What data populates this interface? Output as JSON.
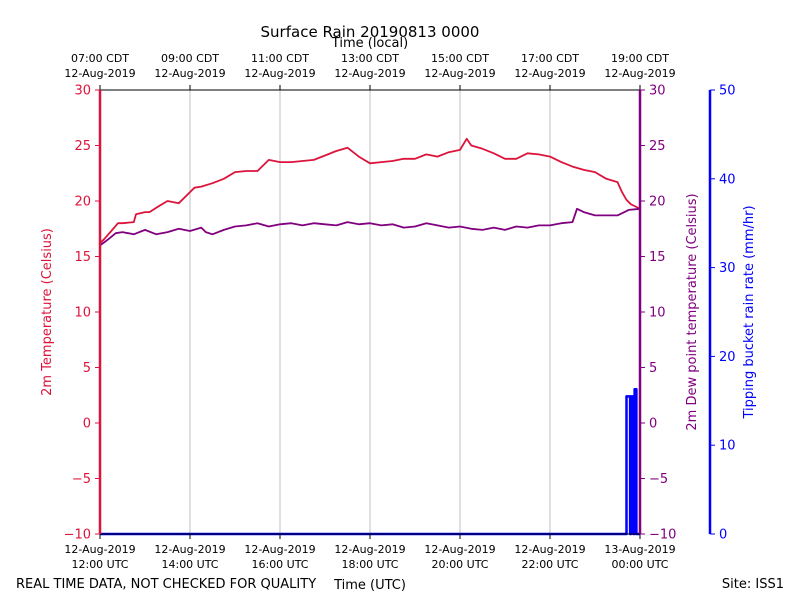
{
  "chart_data": {
    "type": "line",
    "title": "Surface Rain 20190813 0000",
    "top_axis_label": "Time (local)",
    "xlabel": "Time (UTC)",
    "ylabel_left": "2m Temperature (Celsius)",
    "ylabel_right": "2m Dew point temperature (Celsius)",
    "ylabel_far_right": "Tipping bucket rain rate (mm/hr)",
    "footer_left": "REAL TIME DATA, NOT CHECKED FOR QUALITY",
    "footer_right": "Site: ISS1",
    "x_range_hours_utc": [
      12.0,
      24.0
    ],
    "ylim_temperature": [
      -10,
      30
    ],
    "ylim_rain_rate": [
      0,
      50
    ],
    "grid": "vertical",
    "bottom_ticks": [
      {
        "hour": 12,
        "line1": "12-Aug-2019",
        "line2": "12:00 UTC"
      },
      {
        "hour": 14,
        "line1": "12-Aug-2019",
        "line2": "14:00 UTC"
      },
      {
        "hour": 16,
        "line1": "12-Aug-2019",
        "line2": "16:00 UTC"
      },
      {
        "hour": 18,
        "line1": "12-Aug-2019",
        "line2": "18:00 UTC"
      },
      {
        "hour": 20,
        "line1": "12-Aug-2019",
        "line2": "20:00 UTC"
      },
      {
        "hour": 22,
        "line1": "12-Aug-2019",
        "line2": "22:00 UTC"
      },
      {
        "hour": 24,
        "line1": "13-Aug-2019",
        "line2": "00:00 UTC"
      }
    ],
    "top_ticks": [
      {
        "hour": 12,
        "line1": "07:00 CDT",
        "line2": "12-Aug-2019"
      },
      {
        "hour": 14,
        "line1": "09:00 CDT",
        "line2": "12-Aug-2019"
      },
      {
        "hour": 16,
        "line1": "11:00 CDT",
        "line2": "12-Aug-2019"
      },
      {
        "hour": 18,
        "line1": "13:00 CDT",
        "line2": "12-Aug-2019"
      },
      {
        "hour": 20,
        "line1": "15:00 CDT",
        "line2": "12-Aug-2019"
      },
      {
        "hour": 22,
        "line1": "17:00 CDT",
        "line2": "12-Aug-2019"
      },
      {
        "hour": 24,
        "line1": "19:00 CDT",
        "line2": "12-Aug-2019"
      }
    ],
    "temp_ticks": [
      -10,
      -5,
      0,
      5,
      10,
      15,
      20,
      25,
      30
    ],
    "rain_ticks": [
      0,
      10,
      20,
      30,
      40,
      50
    ],
    "colors": {
      "temperature": "#dc143c",
      "dewpoint": "#800080",
      "rain": "#0000ff",
      "grid": "#b0b0b0"
    },
    "series": [
      {
        "key": "temperature",
        "axis": "temperature",
        "x": [
          12.0,
          12.1,
          12.25,
          12.4,
          12.5,
          12.75,
          12.8,
          13.0,
          13.1,
          13.25,
          13.5,
          13.75,
          14.0,
          14.1,
          14.25,
          14.5,
          14.75,
          15.0,
          15.25,
          15.5,
          15.75,
          16.0,
          16.25,
          16.5,
          16.75,
          17.0,
          17.25,
          17.5,
          17.75,
          18.0,
          18.25,
          18.5,
          18.75,
          19.0,
          19.25,
          19.5,
          19.75,
          20.0,
          20.15,
          20.25,
          20.5,
          20.75,
          21.0,
          21.25,
          21.5,
          21.75,
          22.0,
          22.25,
          22.5,
          22.75,
          23.0,
          23.25,
          23.5,
          23.6,
          23.7,
          23.8,
          23.9,
          24.0
        ],
        "values": [
          16.2,
          16.6,
          17.3,
          18.0,
          18.0,
          18.1,
          18.8,
          19.0,
          19.0,
          19.4,
          20.0,
          19.8,
          20.8,
          21.2,
          21.3,
          21.6,
          22.0,
          22.6,
          22.7,
          22.7,
          23.7,
          23.5,
          23.5,
          23.6,
          23.7,
          24.1,
          24.5,
          24.8,
          24.0,
          23.4,
          23.5,
          23.6,
          23.8,
          23.8,
          24.2,
          24.0,
          24.4,
          24.6,
          25.6,
          25.0,
          24.7,
          24.3,
          23.8,
          23.8,
          24.3,
          24.2,
          24.0,
          23.5,
          23.1,
          22.8,
          22.6,
          22.0,
          21.7,
          20.8,
          20.1,
          19.7,
          19.5,
          19.3
        ]
      },
      {
        "key": "dewpoint",
        "axis": "temperature",
        "x": [
          12.0,
          12.1,
          12.2,
          12.35,
          12.5,
          12.75,
          13.0,
          13.25,
          13.5,
          13.75,
          14.0,
          14.25,
          14.35,
          14.5,
          14.75,
          15.0,
          15.25,
          15.5,
          15.75,
          16.0,
          16.25,
          16.5,
          16.75,
          17.0,
          17.25,
          17.5,
          17.75,
          18.0,
          18.25,
          18.5,
          18.75,
          19.0,
          19.25,
          19.5,
          19.75,
          20.0,
          20.25,
          20.5,
          20.75,
          21.0,
          21.25,
          21.5,
          21.75,
          22.0,
          22.25,
          22.5,
          22.6,
          22.75,
          23.0,
          23.25,
          23.5,
          23.75,
          24.0
        ],
        "values": [
          16.0,
          16.3,
          16.6,
          17.1,
          17.2,
          17.0,
          17.4,
          17.0,
          17.2,
          17.5,
          17.3,
          17.6,
          17.2,
          17.0,
          17.4,
          17.7,
          17.8,
          18.0,
          17.7,
          17.9,
          18.0,
          17.8,
          18.0,
          17.9,
          17.8,
          18.1,
          17.9,
          18.0,
          17.8,
          17.9,
          17.6,
          17.7,
          18.0,
          17.8,
          17.6,
          17.7,
          17.5,
          17.4,
          17.6,
          17.4,
          17.7,
          17.6,
          17.8,
          17.8,
          18.0,
          18.1,
          19.3,
          19.0,
          18.7,
          18.7,
          18.7,
          19.2,
          19.3
        ]
      },
      {
        "key": "rain",
        "axis": "rain_rate",
        "x": [
          12.0,
          23.7,
          23.7,
          23.78,
          23.78,
          23.8,
          23.8,
          23.85,
          23.85,
          23.88,
          23.88,
          23.92,
          23.92,
          24.0
        ],
        "values": [
          0,
          0,
          15.5,
          15.5,
          0,
          0,
          15.5,
          15.5,
          0,
          0,
          16.3,
          16.3,
          0,
          0
        ]
      }
    ]
  }
}
